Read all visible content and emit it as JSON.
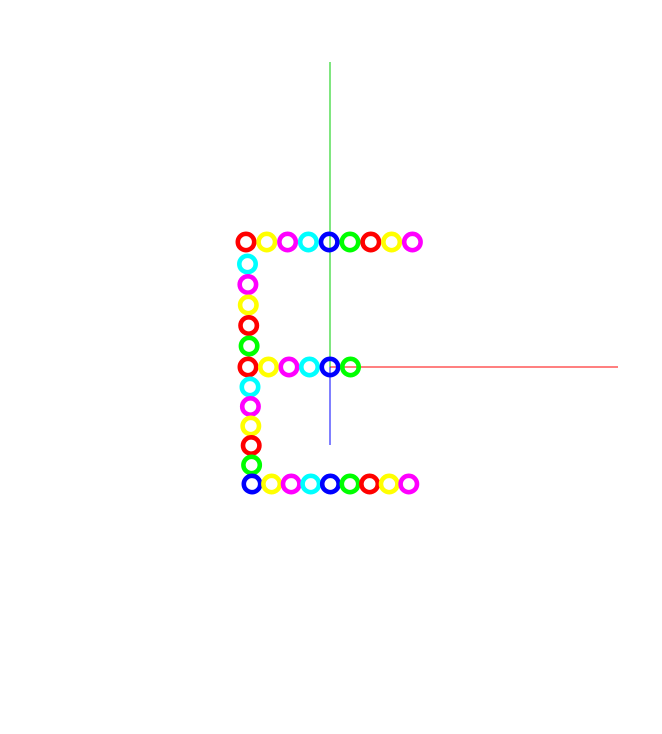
{
  "colors": {
    "background": "#ffffff",
    "x_axis": "#ff0000",
    "y_axis": "#00cc00",
    "z_axis": "#0000ff",
    "red": "#ff0000",
    "yellow": "#ffff00",
    "magenta": "#ff00ff",
    "cyan": "#00ffff",
    "blue": "#0000ff",
    "green": "#00ff00"
  },
  "axes": [
    {
      "name": "x-axis-line",
      "color_key": "x_axis"
    },
    {
      "name": "y-axis-line",
      "color_key": "y_axis"
    },
    {
      "name": "z-axis-line",
      "color_key": "z_axis"
    }
  ],
  "letter_strokes": {
    "top_bar": [
      "red",
      "yellow",
      "magenta",
      "cyan",
      "blue",
      "green",
      "red",
      "yellow",
      "magenta"
    ],
    "left_upper": [
      "cyan",
      "magenta",
      "yellow",
      "red",
      "green"
    ],
    "middle_bar": [
      "red",
      "yellow",
      "magenta",
      "cyan",
      "blue",
      "green"
    ],
    "left_lower": [
      "cyan",
      "magenta",
      "yellow",
      "red",
      "green"
    ],
    "bottom_bar": [
      "blue",
      "yellow",
      "magenta",
      "cyan",
      "blue",
      "green",
      "red",
      "yellow",
      "magenta"
    ]
  }
}
